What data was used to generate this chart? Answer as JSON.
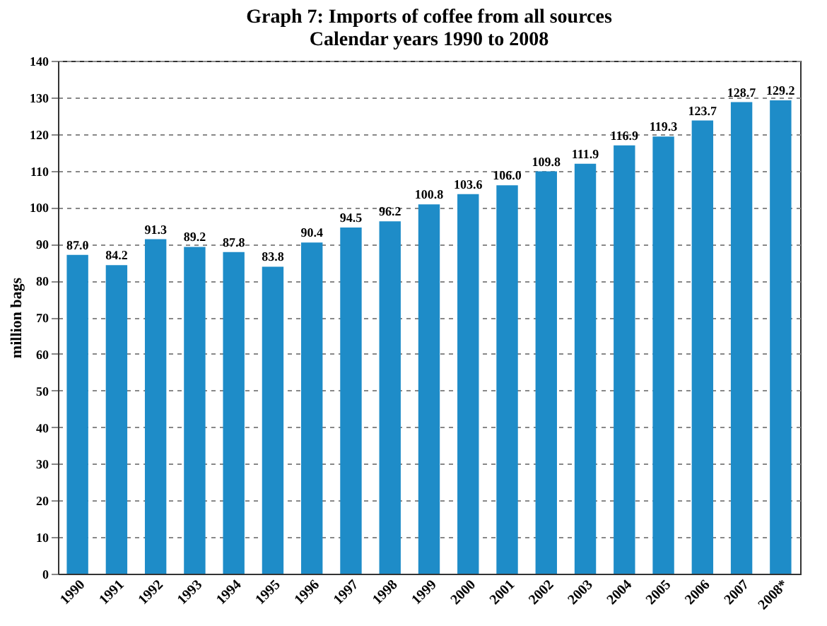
{
  "chart_data": {
    "type": "bar",
    "title": "Graph 7:  Imports of coffee from all sources\nCalendar years 1990 to 2008",
    "ylabel": "million bags",
    "categories": [
      "1990",
      "1991",
      "1992",
      "1993",
      "1994",
      "1995",
      "1996",
      "1997",
      "1998",
      "1999",
      "2000",
      "2001",
      "2002",
      "2003",
      "2004",
      "2005",
      "2006",
      "2007",
      "2008*"
    ],
    "values": [
      87.0,
      84.2,
      91.3,
      89.2,
      87.8,
      83.8,
      90.4,
      94.5,
      96.2,
      100.8,
      103.6,
      106.0,
      109.8,
      111.9,
      116.9,
      119.3,
      123.7,
      128.7,
      129.2
    ],
    "value_labels": [
      "87.0",
      "84.2",
      "91.3",
      "89.2",
      "87.8",
      "83.8",
      "90.4",
      "94.5",
      "96.2",
      "100.8",
      "103.6",
      "106.0",
      "109.8",
      "111.9",
      "116.9",
      "119.3",
      "123.7",
      "128.7",
      "129.2"
    ],
    "color": "#1e8cc8",
    "ylim": [
      0,
      140
    ],
    "yticks": [
      0,
      10,
      20,
      30,
      40,
      50,
      60,
      70,
      80,
      90,
      100,
      110,
      120,
      130,
      140
    ],
    "grid": "y"
  }
}
